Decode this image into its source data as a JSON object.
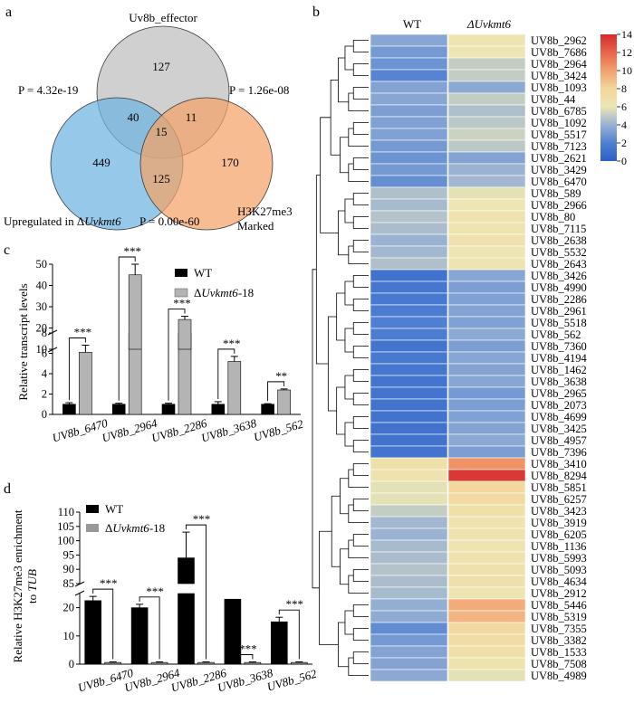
{
  "panels": {
    "a": {
      "label": "a",
      "venn": {
        "sets": [
          {
            "name": "Uv8b_effector",
            "color": "#c8c8c8"
          },
          {
            "name_prefix": "Upregulated in Δ",
            "name_italic": "Uvkmt6",
            "color": "#6db4e0"
          },
          {
            "name_line1": "H3K27me3",
            "name_line2": "Marked",
            "color": "#f4a266"
          }
        ],
        "regions": {
          "effector_only": "127",
          "up_only": "449",
          "h3_only": "170",
          "effector_up": "40",
          "effector_h3": "11",
          "up_h3": "125",
          "all": "15"
        },
        "pvalues": {
          "effector_up": "P = 4.32e-19",
          "effector_h3": "P = 1.26e-08",
          "up_h3": "P = 0.00e-60"
        }
      }
    },
    "b": {
      "label": "b",
      "col_labels": [
        "WT",
        "ΔUvkmt6"
      ],
      "colorbar_ticks": [
        "0",
        "2",
        "4",
        "6",
        "8",
        "10",
        "12",
        "14"
      ],
      "colorbar_range": [
        0,
        14
      ],
      "rows": [
        [
          "UV8b_2962",
          3.5,
          6.2
        ],
        [
          "UV8b_7686",
          3.0,
          6.0
        ],
        [
          "UV8b_2964",
          2.8,
          5.0
        ],
        [
          "UV8b_3424",
          2.2,
          5.0
        ],
        [
          "UV8b_1093",
          3.4,
          3.6
        ],
        [
          "UV8b_44",
          3.5,
          5.0
        ],
        [
          "UV8b_6785",
          3.2,
          4.5
        ],
        [
          "UV8b_1092",
          3.3,
          4.8
        ],
        [
          "UV8b_5517",
          3.3,
          5.2
        ],
        [
          "UV8b_7123",
          3.0,
          4.8
        ],
        [
          "UV8b_2621",
          2.8,
          3.4
        ],
        [
          "UV8b_3429",
          3.0,
          4.0
        ],
        [
          "UV8b_6470",
          2.6,
          4.2
        ],
        [
          "UV8b_589",
          4.5,
          5.8
        ],
        [
          "UV8b_2966",
          4.3,
          6.0
        ],
        [
          "UV8b_80",
          4.6,
          6.5
        ],
        [
          "UV8b_7115",
          4.4,
          6.3
        ],
        [
          "UV8b_2638",
          4.0,
          6.6
        ],
        [
          "UV8b_5532",
          4.2,
          6.0
        ],
        [
          "UV8b_2643",
          4.5,
          6.2
        ],
        [
          "UV8b_3426",
          1.2,
          3.5
        ],
        [
          "UV8b_4990",
          1.5,
          3.2
        ],
        [
          "UV8b_2286",
          1.6,
          3.3
        ],
        [
          "UV8b_2961",
          1.8,
          3.4
        ],
        [
          "UV8b_5518",
          2.0,
          3.3
        ],
        [
          "UV8b_562",
          1.9,
          3.6
        ],
        [
          "UV8b_7360",
          1.4,
          3.2
        ],
        [
          "UV8b_4194",
          1.6,
          3.5
        ],
        [
          "UV8b_1462",
          1.5,
          3.4
        ],
        [
          "UV8b_3638",
          1.4,
          3.5
        ],
        [
          "UV8b_2965",
          1.4,
          3.0
        ],
        [
          "UV8b_2073",
          1.3,
          3.2
        ],
        [
          "UV8b_4699",
          1.3,
          3.3
        ],
        [
          "UV8b_3425",
          1.2,
          3.4
        ],
        [
          "UV8b_4957",
          1.3,
          3.6
        ],
        [
          "UV8b_7396",
          1.4,
          3.2
        ],
        [
          "UV8b_3410",
          6.8,
          10.5
        ],
        [
          "UV8b_8294",
          6.5,
          13.5
        ],
        [
          "UV8b_5851",
          5.8,
          7.8
        ],
        [
          "UV8b_6257",
          5.8,
          7.5
        ],
        [
          "UV8b_3423",
          5.0,
          6.8
        ],
        [
          "UV8b_3919",
          4.2,
          6.4
        ],
        [
          "UV8b_6205",
          4.0,
          6.5
        ],
        [
          "UV8b_1136",
          4.3,
          6.2
        ],
        [
          "UV8b_5993",
          4.4,
          6.5
        ],
        [
          "UV8b_5093",
          4.6,
          6.6
        ],
        [
          "UV8b_4634",
          4.4,
          6.8
        ],
        [
          "UV8b_2912",
          4.3,
          6.2
        ],
        [
          "UV8b_5446",
          3.8,
          9.6
        ],
        [
          "UV8b_5319",
          3.7,
          9.3
        ],
        [
          "UV8b_7355",
          2.5,
          7.6
        ],
        [
          "UV8b_3382",
          3.0,
          7.2
        ],
        [
          "UV8b_1533",
          3.4,
          6.8
        ],
        [
          "UV8b_7508",
          3.4,
          6.4
        ],
        [
          "UV8b_4989",
          3.6,
          5.8
        ]
      ]
    },
    "c": {
      "label": "c",
      "legend": [
        {
          "text": "WT"
        },
        {
          "prefix": "Δ",
          "italic": "Uvkmt6",
          "suffix": "-18"
        }
      ],
      "ylabel": "Relative transcript levels"
    },
    "d": {
      "label": "d",
      "legend": [
        {
          "text": "WT"
        },
        {
          "prefix": "Δ",
          "italic": "Uvkmt6",
          "suffix": "-18"
        }
      ],
      "ylabel_line1": "Relative  H3K27me3 enrichment",
      "ylabel_line2_prefix": "to ",
      "ylabel_line2_italic": "TUB"
    }
  },
  "chart_data": [
    {
      "panel": "c",
      "type": "bar",
      "categories": [
        "UV8b_6470",
        "UV8b_2964",
        "UV8b_2286",
        "UV8b_3638",
        "UV8b_562"
      ],
      "series": [
        {
          "name": "WT",
          "color": "#000000",
          "values": [
            1.0,
            1.0,
            1.0,
            1.0,
            1.0
          ],
          "errors": [
            0.15,
            0.1,
            0.1,
            0.25,
            0.05
          ]
        },
        {
          "name": "ΔUvkmt6-18",
          "color": "#b4b4b4",
          "values": [
            6.1,
            45,
            24,
            5.2,
            2.4
          ],
          "errors": [
            0.7,
            5,
            1.5,
            0.5,
            0.1
          ]
        }
      ],
      "significance": [
        "***",
        "***",
        "***",
        "***",
        "**"
      ],
      "yticks_lower": [
        0,
        2,
        4,
        6,
        8
      ],
      "yticks_upper": [
        10,
        20,
        30,
        40,
        50
      ],
      "axis_break": [
        8,
        10
      ],
      "ylabel": "Relative transcript levels"
    },
    {
      "panel": "d",
      "type": "bar",
      "categories": [
        "UV8b_6470",
        "UV8b_2964",
        "UV8b_2286",
        "UV8b_3638",
        "UV8b_562"
      ],
      "series": [
        {
          "name": "WT",
          "color": "#000000",
          "values": [
            22.5,
            20,
            94,
            23,
            15
          ],
          "errors": [
            1.5,
            1.2,
            9,
            2.2,
            1.6
          ]
        },
        {
          "name": "ΔUvkmt6-18",
          "color": "#999999",
          "values": [
            0.6,
            0.6,
            0.6,
            0.6,
            0.6
          ],
          "errors": [
            0.2,
            0.2,
            0.2,
            0.2,
            0.2
          ]
        }
      ],
      "significance": [
        "***",
        "***",
        "***",
        "***",
        "***"
      ],
      "yticks_lower": [
        0,
        10,
        20
      ],
      "yticks_upper": [
        85,
        90,
        95,
        100,
        105,
        110
      ],
      "axis_break": [
        25,
        85
      ],
      "ylabel": "Relative  H3K27me3 enrichment to TUB"
    }
  ]
}
